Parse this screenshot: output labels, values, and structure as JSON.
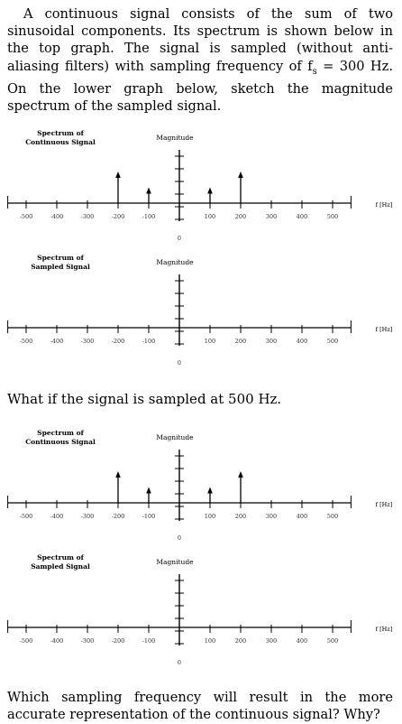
{
  "intro": "A continuous signal consists of the sum of two sinusoidal components. Its spectrum is shown below in the top graph. The signal is sampled (without anti-aliasing filters) with sampling frequency of f",
  "intro_sub": "s",
  "intro_tail": " = 300 Hz. On the lower graph below, sketch the magnitude spectrum of the sampled signal.",
  "question_500": "What if the signal is sampled at 500 Hz.",
  "final_question": "Which sampling frequency will result in the more accurate representation of the continuous signal? Why?",
  "graphs": [
    {
      "title1": "Spectrum of",
      "title2": "Continuous Signal",
      "magnitude": "Magnitude",
      "unit": "f [Hz]",
      "zero": "0",
      "ticks": [
        "-500",
        "-400",
        "-300",
        "-200",
        "-100",
        "100",
        "200",
        "300",
        "400",
        "500"
      ],
      "arrows": true
    },
    {
      "title1": "Spectrum of",
      "title2": "Sampled Signal",
      "magnitude": "Magnitude",
      "unit": "f [Hz]",
      "zero": "0",
      "ticks": [
        "-500",
        "-400",
        "-300",
        "-200",
        "-100",
        "100",
        "200",
        "300",
        "400",
        "500"
      ],
      "arrows": false
    },
    {
      "title1": "Spectrum of",
      "title2": "Continuous Signal",
      "magnitude": "Magnitude",
      "unit": "f [Hz]",
      "zero": "0",
      "ticks": [
        "-500",
        "-400",
        "-300",
        "-200",
        "-100",
        "100",
        "200",
        "300",
        "400",
        "500"
      ],
      "arrows": true
    },
    {
      "title1": "Spectrum of",
      "title2": "Sampled Signal",
      "magnitude": "Magnitude",
      "unit": "f [Hz]",
      "zero": "0",
      "ticks": [
        "-500",
        "-400",
        "-300",
        "-200",
        "-100",
        "100",
        "200",
        "300",
        "400",
        "500"
      ],
      "arrows": false
    }
  ],
  "spectral_lines": [
    {
      "f": -200,
      "magnitude": 1.0
    },
    {
      "f": -100,
      "magnitude": 0.5
    },
    {
      "f": 100,
      "magnitude": 0.5
    },
    {
      "f": 200,
      "magnitude": 1.0
    }
  ]
}
